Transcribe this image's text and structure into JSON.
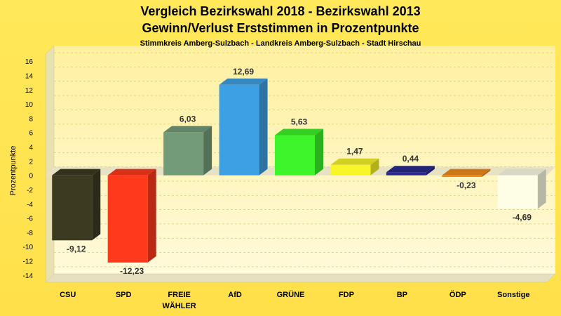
{
  "chart_data": {
    "type": "bar",
    "title": "Vergleich Bezirkswahl 2018 - Bezirkswahl 2013",
    "subtitle": "Gewinn/Verlust Erststimmen in Prozentpunkte",
    "subtitle2": "Stimmkreis Amberg-Sulzbach - Landkreis Amberg-Sulzbach - Stadt Hirschau",
    "ylabel": "Prozentpunkte",
    "ylim": [
      -15,
      17
    ],
    "yticks": [
      16,
      14,
      12,
      10,
      8,
      6,
      4,
      2,
      0,
      -2,
      -4,
      -6,
      -8,
      -10,
      -12,
      -14
    ],
    "grid": true,
    "categories": [
      {
        "line1": "CSU",
        "line2": ""
      },
      {
        "line1": "SPD",
        "line2": ""
      },
      {
        "line1": "FREIE",
        "line2": "WÄHLER"
      },
      {
        "line1": "AfD",
        "line2": ""
      },
      {
        "line1": "GRÜNE",
        "line2": ""
      },
      {
        "line1": "FDP",
        "line2": ""
      },
      {
        "line1": "BP",
        "line2": ""
      },
      {
        "line1": "ÖDP",
        "line2": ""
      },
      {
        "line1": "Sonstige",
        "line2": ""
      }
    ],
    "values": [
      -9.12,
      -12.23,
      6.03,
      12.69,
      5.63,
      1.47,
      0.44,
      -0.23,
      -4.69
    ],
    "value_labels": [
      "-9,12",
      "-12,23",
      "6,03",
      "12,69",
      "5,63",
      "1,47",
      "0,44",
      "-0,23",
      "-4,69"
    ],
    "colors": [
      "#3d3a22",
      "#ff3a1c",
      "#739b7a",
      "#3ea0e4",
      "#3ef42a",
      "#f8f52a",
      "#2a2a8c",
      "#f08c1c",
      "#fefee6"
    ]
  }
}
